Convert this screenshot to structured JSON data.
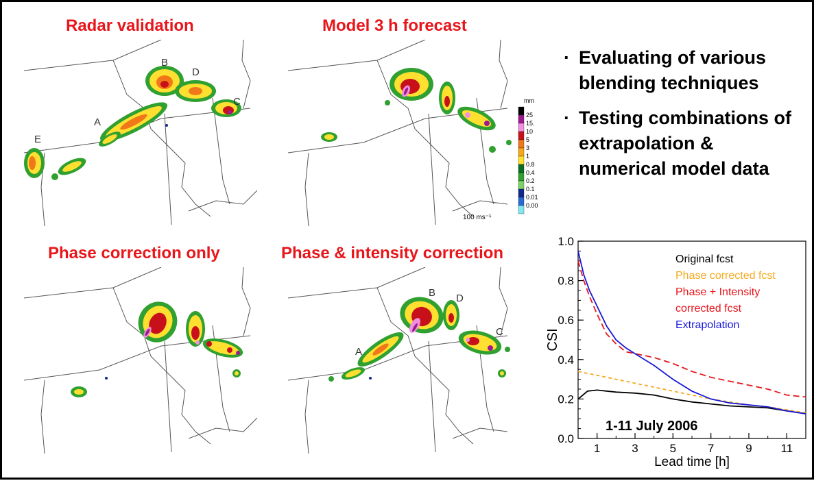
{
  "panels": {
    "radar": {
      "title": "Radar validation",
      "letters": [
        "B",
        "D",
        "A",
        "C",
        "E"
      ]
    },
    "model": {
      "title": "Model 3 h forecast"
    },
    "phase": {
      "title": "Phase correction only"
    },
    "phase_intensity": {
      "title": "Phase & intensity correction",
      "letters": [
        "B",
        "D",
        "A",
        "C"
      ]
    }
  },
  "colorbar": {
    "unit": "mm",
    "labels": [
      "25",
      "15.",
      "10",
      "5",
      "3",
      "1",
      "0.8",
      "0.4",
      "0.2",
      "0.1",
      "0.01",
      "0.00"
    ],
    "colors": [
      "#000000",
      "#9c1a8f",
      "#f090e0",
      "#c8101a",
      "#f07818",
      "#f5a81c",
      "#ffe030",
      "#0a6d22",
      "#30a030",
      "#7dd268",
      "#102a8c",
      "#2a6ad0",
      "#80e8f0"
    ],
    "vector_label": "100 ms⁻¹"
  },
  "bullets": [
    {
      "dot": "·",
      "text": "Evaluating of various blending techniques"
    },
    {
      "dot": "·",
      "text": "Testing combinations of extrapolation & numerical model data"
    }
  ],
  "chart_data": {
    "type": "line",
    "ylabel": "CSI",
    "xlabel": "Lead time [h]",
    "annotation": "1-11 July 2006",
    "xlim": [
      0,
      12
    ],
    "ylim": [
      0,
      1.0
    ],
    "xticks": [
      1,
      3,
      5,
      7,
      9,
      11
    ],
    "yticks": [
      0.0,
      0.2,
      0.4,
      0.6,
      0.8,
      1.0
    ],
    "ytick_labels": [
      "0.0",
      "0.2",
      "0.4",
      "0.6",
      "0.8",
      "1.0"
    ],
    "legend": "top-right",
    "series": [
      {
        "name": "Original fcst",
        "color": "#000000",
        "dash": "",
        "x": [
          0,
          0.5,
          1,
          2,
          3,
          4,
          5,
          6,
          7,
          8,
          9,
          10,
          11,
          12
        ],
        "y": [
          0.2,
          0.24,
          0.245,
          0.235,
          0.23,
          0.22,
          0.2,
          0.185,
          0.175,
          0.165,
          0.16,
          0.155,
          0.14,
          0.125
        ]
      },
      {
        "name": "Phase corrected fcst",
        "color": "#f5a81c",
        "dash": "5,4",
        "x": [
          0,
          0.5,
          1,
          2,
          3,
          4,
          5,
          6,
          7,
          8,
          9,
          10,
          11,
          12
        ],
        "y": [
          0.34,
          0.33,
          0.32,
          0.3,
          0.28,
          0.26,
          0.24,
          0.22,
          0.2,
          0.185,
          0.17,
          0.16,
          0.145,
          0.13
        ]
      },
      {
        "name": "Phase + Intensity corrected fcst",
        "color": "#e8161b",
        "dash": "9,5",
        "x": [
          0,
          0.3,
          0.6,
          1,
          1.5,
          2,
          2.5,
          3,
          4,
          5,
          6,
          7,
          8,
          9,
          10,
          11,
          12
        ],
        "y": [
          0.9,
          0.8,
          0.72,
          0.63,
          0.53,
          0.48,
          0.44,
          0.43,
          0.41,
          0.38,
          0.34,
          0.31,
          0.29,
          0.27,
          0.25,
          0.22,
          0.21
        ]
      },
      {
        "name": "Extrapolation",
        "color": "#1818d8",
        "dash": "",
        "x": [
          0,
          0.3,
          0.6,
          1,
          1.5,
          2,
          2.5,
          3,
          4,
          5,
          6,
          7,
          8,
          9,
          10,
          11,
          12
        ],
        "y": [
          0.95,
          0.83,
          0.75,
          0.67,
          0.57,
          0.5,
          0.46,
          0.43,
          0.37,
          0.3,
          0.24,
          0.2,
          0.18,
          0.17,
          0.16,
          0.14,
          0.125
        ]
      }
    ]
  }
}
